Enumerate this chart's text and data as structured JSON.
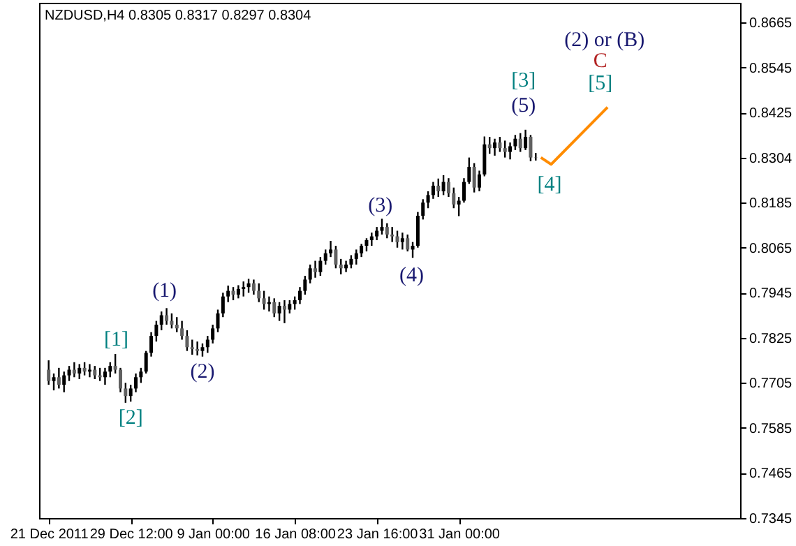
{
  "chart_data": {
    "type": "candlestick",
    "title": "NZDUSD,H4  0.8305 0.8317 0.8297 0.8304",
    "categories": [
      "21 Dec 2011",
      null,
      null,
      null,
      null,
      null,
      null,
      null,
      null,
      null,
      null,
      null,
      null,
      null,
      null,
      null,
      "29 Dec 12:00",
      null,
      null,
      null,
      null,
      null,
      null,
      null,
      null,
      null,
      null,
      null,
      null,
      null,
      null,
      null,
      "9 Jan 00:00",
      null,
      null,
      null,
      null,
      null,
      null,
      null,
      null,
      null,
      null,
      null,
      null,
      null,
      null,
      null,
      "16 Jan 08:00",
      null,
      null,
      null,
      null,
      null,
      null,
      null,
      null,
      null,
      null,
      null,
      null,
      null,
      null,
      null,
      "23 Jan 16:00",
      null,
      null,
      null,
      null,
      null,
      null,
      null,
      null,
      null,
      null,
      null,
      null,
      null,
      null,
      null,
      "31 Jan 00:00",
      null,
      null,
      null,
      null,
      null,
      null,
      null,
      null,
      null,
      null,
      null,
      null,
      null,
      null,
      null,
      null,
      null,
      null,
      null,
      null,
      null,
      null,
      null,
      null,
      null,
      null,
      null,
      null,
      null,
      null,
      null,
      null,
      null,
      null,
      null,
      null,
      null,
      null,
      null,
      null,
      null,
      null,
      null,
      null,
      null,
      null,
      null,
      null,
      null,
      null,
      null,
      null,
      null
    ],
    "ohlc": [
      [
        0.774,
        0.7765,
        0.77,
        0.771
      ],
      [
        0.771,
        0.773,
        0.7685,
        0.772
      ],
      [
        0.772,
        0.7745,
        0.769,
        0.77
      ],
      [
        0.77,
        0.7735,
        0.768,
        0.7725
      ],
      [
        0.7725,
        0.775,
        0.771,
        0.774
      ],
      [
        0.774,
        0.776,
        0.772,
        0.773
      ],
      [
        0.773,
        0.7755,
        0.7715,
        0.7745
      ],
      [
        0.7745,
        0.776,
        0.7725,
        0.7735
      ],
      [
        0.7735,
        0.7755,
        0.772,
        0.774
      ],
      [
        0.774,
        0.775,
        0.7715,
        0.7725
      ],
      [
        0.7725,
        0.7745,
        0.771,
        0.772
      ],
      [
        0.772,
        0.7745,
        0.77,
        0.7735
      ],
      [
        0.7735,
        0.776,
        0.772,
        0.775
      ],
      [
        0.775,
        0.7782,
        0.773,
        0.774
      ],
      [
        0.774,
        0.7745,
        0.768,
        0.769
      ],
      [
        0.769,
        0.7705,
        0.7652,
        0.767
      ],
      [
        0.767,
        0.77,
        0.7655,
        0.769
      ],
      [
        0.769,
        0.773,
        0.768,
        0.772
      ],
      [
        0.772,
        0.7745,
        0.7705,
        0.7735
      ],
      [
        0.7735,
        0.779,
        0.773,
        0.7785
      ],
      [
        0.7785,
        0.784,
        0.7775,
        0.783
      ],
      [
        0.783,
        0.787,
        0.7815,
        0.786
      ],
      [
        0.786,
        0.7895,
        0.7845,
        0.7885
      ],
      [
        0.7885,
        0.7904,
        0.786,
        0.787
      ],
      [
        0.787,
        0.789,
        0.785,
        0.786
      ],
      [
        0.786,
        0.788,
        0.784,
        0.785
      ],
      [
        0.785,
        0.787,
        0.782,
        0.783
      ],
      [
        0.783,
        0.7845,
        0.779,
        0.78
      ],
      [
        0.78,
        0.782,
        0.778,
        0.7795
      ],
      [
        0.7795,
        0.7815,
        0.7778,
        0.779
      ],
      [
        0.779,
        0.781,
        0.7775,
        0.78
      ],
      [
        0.78,
        0.783,
        0.7785,
        0.782
      ],
      [
        0.782,
        0.786,
        0.781,
        0.785
      ],
      [
        0.785,
        0.79,
        0.784,
        0.789
      ],
      [
        0.789,
        0.7945,
        0.788,
        0.7935
      ],
      [
        0.7935,
        0.7964,
        0.792,
        0.795
      ],
      [
        0.795,
        0.796,
        0.7925,
        0.794
      ],
      [
        0.794,
        0.7965,
        0.793,
        0.7955
      ],
      [
        0.7955,
        0.7975,
        0.7935,
        0.796
      ],
      [
        0.796,
        0.7982,
        0.7945,
        0.797
      ],
      [
        0.797,
        0.798,
        0.794,
        0.795
      ],
      [
        0.795,
        0.797,
        0.792,
        0.793
      ],
      [
        0.793,
        0.795,
        0.79,
        0.7915
      ],
      [
        0.7915,
        0.7935,
        0.7895,
        0.792
      ],
      [
        0.792,
        0.793,
        0.788,
        0.789
      ],
      [
        0.789,
        0.792,
        0.787,
        0.791
      ],
      [
        0.791,
        0.7925,
        0.7864,
        0.79
      ],
      [
        0.79,
        0.7925,
        0.789,
        0.7915
      ],
      [
        0.7915,
        0.7935,
        0.79,
        0.7925
      ],
      [
        0.7925,
        0.796,
        0.7915,
        0.795
      ],
      [
        0.795,
        0.799,
        0.794,
        0.798
      ],
      [
        0.798,
        0.802,
        0.797,
        0.801
      ],
      [
        0.801,
        0.803,
        0.7985,
        0.8
      ],
      [
        0.8,
        0.804,
        0.799,
        0.803
      ],
      [
        0.803,
        0.806,
        0.802,
        0.805
      ],
      [
        0.805,
        0.8083,
        0.804,
        0.806
      ],
      [
        0.806,
        0.807,
        0.801,
        0.802
      ],
      [
        0.802,
        0.8035,
        0.7994,
        0.801
      ],
      [
        0.801,
        0.803,
        0.8,
        0.802
      ],
      [
        0.802,
        0.8045,
        0.801,
        0.8035
      ],
      [
        0.8035,
        0.806,
        0.802,
        0.805
      ],
      [
        0.805,
        0.8075,
        0.804,
        0.807
      ],
      [
        0.807,
        0.809,
        0.8055,
        0.8085
      ],
      [
        0.8085,
        0.8105,
        0.807,
        0.8095
      ],
      [
        0.8095,
        0.812,
        0.8085,
        0.811
      ],
      [
        0.811,
        0.8142,
        0.81,
        0.812
      ],
      [
        0.812,
        0.813,
        0.809,
        0.81
      ],
      [
        0.81,
        0.812,
        0.808,
        0.8095
      ],
      [
        0.8095,
        0.811,
        0.8065,
        0.808
      ],
      [
        0.808,
        0.8105,
        0.806,
        0.809
      ],
      [
        0.809,
        0.81,
        0.8055,
        0.806
      ],
      [
        0.806,
        0.808,
        0.8038,
        0.807
      ],
      [
        0.807,
        0.816,
        0.8065,
        0.815
      ],
      [
        0.815,
        0.8194,
        0.814,
        0.8185
      ],
      [
        0.8185,
        0.8215,
        0.817,
        0.8205
      ],
      [
        0.8205,
        0.824,
        0.8195,
        0.823
      ],
      [
        0.823,
        0.8249,
        0.82,
        0.8215
      ],
      [
        0.8215,
        0.8258,
        0.8205,
        0.824
      ],
      [
        0.824,
        0.825,
        0.82,
        0.821
      ],
      [
        0.821,
        0.8225,
        0.817,
        0.818
      ],
      [
        0.818,
        0.82,
        0.8149,
        0.819
      ],
      [
        0.819,
        0.825,
        0.8185,
        0.824
      ],
      [
        0.824,
        0.8305,
        0.8235,
        0.828
      ],
      [
        0.828,
        0.829,
        0.8212,
        0.8225
      ],
      [
        0.8225,
        0.827,
        0.8215,
        0.826
      ],
      [
        0.826,
        0.8361,
        0.8255,
        0.834
      ],
      [
        0.834,
        0.836,
        0.8315,
        0.833
      ],
      [
        0.833,
        0.8355,
        0.831,
        0.8345
      ],
      [
        0.8345,
        0.836,
        0.832,
        0.833
      ],
      [
        0.833,
        0.835,
        0.8305,
        0.832
      ],
      [
        0.832,
        0.8345,
        0.83,
        0.8335
      ],
      [
        0.8335,
        0.8365,
        0.8325,
        0.8355
      ],
      [
        0.8355,
        0.837,
        0.832,
        0.833
      ],
      [
        0.833,
        0.8379,
        0.8325,
        0.836
      ],
      [
        0.836,
        0.8365,
        0.8295,
        0.8305
      ],
      [
        0.8305,
        0.8317,
        0.8297,
        0.8304
      ],
      null,
      null,
      null,
      null,
      null,
      null,
      null,
      null,
      null,
      null,
      null,
      null,
      null,
      null,
      null,
      null,
      null,
      null,
      null,
      null,
      null,
      null,
      null,
      null,
      null,
      null,
      null,
      null,
      null,
      null,
      null,
      null,
      null,
      null,
      null,
      null,
      null,
      null
    ],
    "series": [
      {
        "type": "line",
        "color": "#ff8c00",
        "values": [
          null,
          null,
          null,
          null,
          null,
          null,
          null,
          null,
          null,
          null,
          null,
          null,
          null,
          null,
          null,
          null,
          null,
          null,
          null,
          null,
          null,
          null,
          null,
          null,
          null,
          null,
          null,
          null,
          null,
          null,
          null,
          null,
          null,
          null,
          null,
          null,
          null,
          null,
          null,
          null,
          null,
          null,
          null,
          null,
          null,
          null,
          null,
          null,
          null,
          null,
          null,
          null,
          null,
          null,
          null,
          null,
          null,
          null,
          null,
          null,
          null,
          null,
          null,
          null,
          null,
          null,
          null,
          null,
          null,
          null,
          null,
          null,
          null,
          null,
          null,
          null,
          null,
          null,
          null,
          null,
          null,
          null,
          null,
          null,
          null,
          null,
          null,
          null,
          null,
          null,
          null,
          null,
          null,
          null,
          null,
          null,
          0.8305,
          null,
          0.8287,
          null,
          null,
          null,
          null,
          null,
          null,
          null,
          null,
          null,
          null,
          0.8439,
          null,
          null,
          null,
          null,
          null,
          null,
          null,
          null,
          null,
          null,
          null,
          null,
          null,
          null,
          null,
          null,
          null,
          null,
          null,
          null,
          null,
          null,
          null,
          null
        ]
      }
    ],
    "ylim": [
      0.7345,
      0.8717
    ],
    "yticks": [
      0.7345,
      0.7465,
      0.7585,
      0.7705,
      0.7825,
      0.7945,
      0.8065,
      0.8185,
      {
        "value": 0.8304,
        "label": "0.8304"
      },
      0.8425,
      0.8545,
      0.8665
    ],
    "annotations": [
      "[1]",
      "[2]",
      "(1)",
      "(2)",
      "(3)",
      "(4)",
      "[3]",
      "(5)",
      "[4]",
      "[5]",
      "C",
      "(2) or (B)"
    ],
    "grid": false
  }
}
